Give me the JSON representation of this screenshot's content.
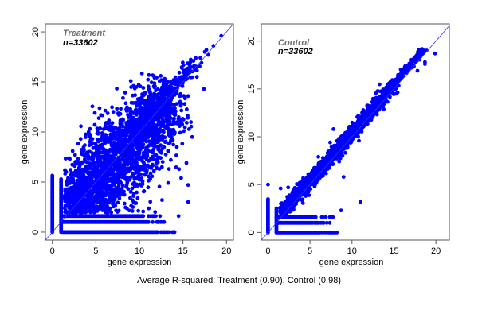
{
  "caption": "Average R-squared: Treatment (0.90), Control (0.98)",
  "colors": {
    "points": "#0000ff",
    "identity_line": "#3333ff",
    "frame": "#555555",
    "title_gray": "#6e6e6e"
  },
  "chart_data": [
    {
      "type": "scatter",
      "panel": "left",
      "title": "Treatment",
      "annotation": "n=33602",
      "n_points": 33602,
      "xlabel": "gene expression",
      "ylabel": "gene expression",
      "xlim": [
        -0.8,
        20.8
      ],
      "ylim": [
        -0.8,
        20.8
      ],
      "xticks": [
        0,
        5,
        10,
        15,
        20
      ],
      "yticks": [
        0,
        5,
        10,
        15,
        20
      ],
      "xtick_labels": [
        "0",
        "5",
        "10",
        "15",
        "20"
      ],
      "ytick_labels": [
        "0",
        "5",
        "10",
        "15",
        "20"
      ],
      "reference_line": {
        "type": "identity",
        "slope": 1,
        "intercept": 0
      },
      "r_squared": 0.9,
      "cloud": {
        "x_range": [
          1.5,
          16.5
        ],
        "spread": 1.6,
        "bias": 0.4
      },
      "floor_rows": [
        {
          "y": 0,
          "x_range": [
            1.2,
            14.3
          ]
        },
        {
          "y": 1.0,
          "x_range": [
            1.2,
            13.0
          ]
        },
        {
          "y": 1.6,
          "x_range": [
            1.2,
            12.6
          ]
        }
      ],
      "floor_columns": [
        {
          "x": 0,
          "y_range": [
            0,
            5.7
          ]
        },
        {
          "x": 1.0,
          "y_range": [
            0,
            5.4
          ]
        }
      ],
      "outliers": [
        [
          19.4,
          19.6
        ],
        [
          18.5,
          18.6
        ],
        [
          17.5,
          18.0
        ],
        [
          17.7,
          18.2
        ],
        [
          17.0,
          17.4
        ],
        [
          17.9,
          17.7
        ],
        [
          16.5,
          16.2
        ],
        [
          17.4,
          14.3
        ],
        [
          16.6,
          15.5
        ],
        [
          12.0,
          12.7
        ],
        [
          11.4,
          12.6
        ],
        [
          9.1,
          11.0
        ],
        [
          6.6,
          10.5
        ],
        [
          7.8,
          10.8
        ],
        [
          5.2,
          10.0
        ],
        [
          4.6,
          9.3
        ],
        [
          3.4,
          8.0
        ],
        [
          2.0,
          7.3
        ],
        [
          14.0,
          9.8
        ],
        [
          14.3,
          8.5
        ],
        [
          15.4,
          6.9
        ],
        [
          15.6,
          4.7
        ],
        [
          15.6,
          3.0
        ],
        [
          14.5,
          1.6
        ],
        [
          13.4,
          6.3
        ],
        [
          12.6,
          3.2
        ],
        [
          11.8,
          2.0
        ],
        [
          13.3,
          4.9
        ],
        [
          14.8,
          5.4
        ],
        [
          12.2,
          1.0
        ]
      ]
    },
    {
      "type": "scatter",
      "panel": "right",
      "title": "Control",
      "annotation": "n=33602",
      "n_points": 33602,
      "xlabel": "gene expression",
      "ylabel": "gene expression",
      "xlim": [
        -0.8,
        21.6
      ],
      "ylim": [
        -0.8,
        21.8
      ],
      "xticks": [
        0,
        5,
        10,
        15,
        20
      ],
      "yticks": [
        0,
        5,
        10,
        15,
        20
      ],
      "xtick_labels": [
        "0",
        "5",
        "10",
        "15",
        "20"
      ],
      "ytick_labels": [
        "0",
        "5",
        "10",
        "15",
        "20"
      ],
      "reference_line": {
        "type": "identity",
        "slope": 1,
        "intercept": 0
      },
      "r_squared": 0.98,
      "cloud": {
        "x_range": [
          1.5,
          19.0
        ],
        "spread": 0.55,
        "bias": 0.35
      },
      "floor_rows": [
        {
          "y": 0,
          "x_range": [
            1.0,
            8.3
          ]
        },
        {
          "y": 1.0,
          "x_range": [
            1.0,
            7.6
          ]
        },
        {
          "y": 1.6,
          "x_range": [
            1.0,
            7.9
          ]
        }
      ],
      "floor_columns": [
        {
          "x": 0,
          "y_range": [
            0,
            3.6
          ]
        },
        {
          "x": 1.0,
          "y_range": [
            0,
            2.6
          ]
        }
      ],
      "outliers": [
        [
          19.9,
          18.7
        ],
        [
          18.7,
          17.8
        ],
        [
          18.7,
          17.6
        ],
        [
          17.8,
          16.9
        ],
        [
          11.0,
          3.2
        ],
        [
          8.7,
          2.3
        ],
        [
          9.0,
          5.8
        ],
        [
          7.4,
          9.4
        ],
        [
          6.0,
          7.9
        ],
        [
          4.8,
          6.1
        ],
        [
          4.1,
          4.7
        ],
        [
          1.5,
          4.6
        ],
        [
          0,
          5.0
        ],
        [
          2.4,
          4.7
        ],
        [
          10.4,
          10.8
        ],
        [
          13.0,
          13.6
        ],
        [
          12.3,
          12.8
        ],
        [
          7.8,
          10.8
        ]
      ]
    }
  ]
}
